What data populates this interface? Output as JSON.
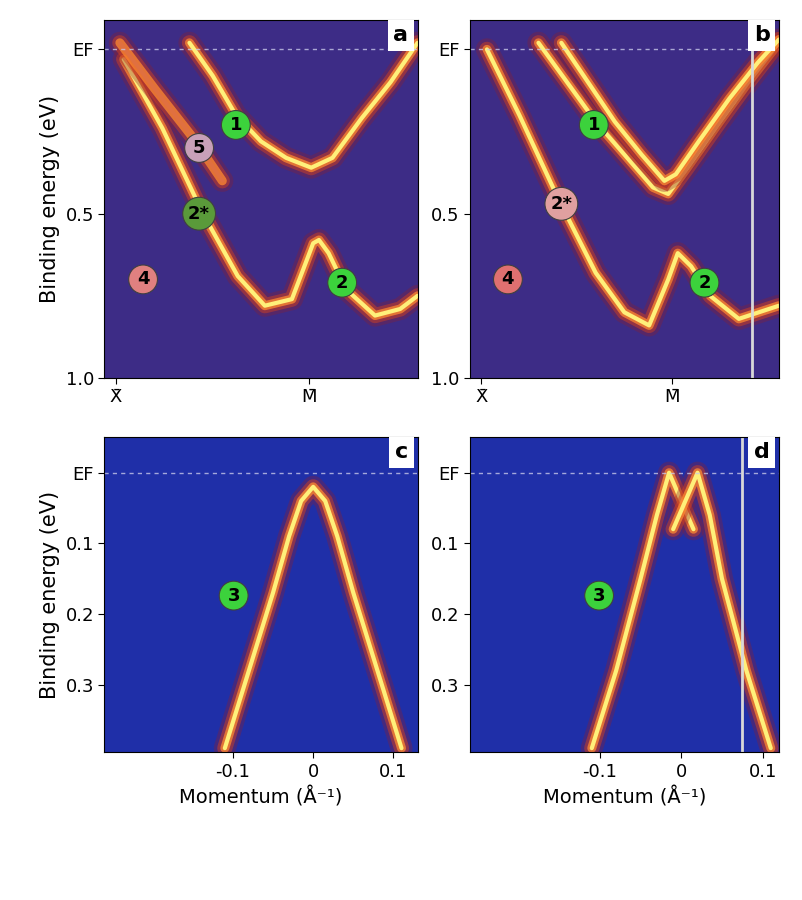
{
  "chart_data": [
    {
      "type": "line",
      "title": "a",
      "ylabel": "Binding energy (eV)",
      "xlim": [
        -0.06,
        1.56
      ],
      "ylim": [
        1.0,
        -0.09
      ],
      "xticks": [
        {
          "value": 0,
          "label": "X̄"
        },
        {
          "value": 1,
          "label": "M̄"
        }
      ],
      "yticks": [
        {
          "value": 0,
          "label": "EF"
        },
        0.5,
        1.0
      ],
      "hlines": [
        0
      ],
      "series": [
        {
          "color": "#fff07a",
          "x": [
            0.04,
            0.24,
            0.45,
            0.63,
            0.77,
            0.91,
            1.02,
            1.05,
            1.1,
            1.19,
            1.34,
            1.47,
            1.56
          ],
          "values": [
            0.03,
            0.24,
            0.5,
            0.69,
            0.78,
            0.76,
            0.59,
            0.58,
            0.62,
            0.73,
            0.81,
            0.79,
            0.75
          ]
        },
        {
          "color": "#fff07a",
          "x": [
            0.38,
            0.5,
            0.62,
            0.75,
            0.88,
            1.01,
            1.12,
            1.27,
            1.42,
            1.56
          ],
          "values": [
            -0.02,
            0.08,
            0.2,
            0.28,
            0.33,
            0.36,
            0.33,
            0.21,
            0.1,
            -0.02
          ]
        },
        {
          "color": "#e07040",
          "x": [
            0.02,
            0.2,
            0.4,
            0.55
          ],
          "values": [
            -0.02,
            0.12,
            0.27,
            0.4
          ]
        }
      ],
      "annotations": [
        {
          "text": "1",
          "x": 0.62,
          "y": 0.23,
          "color": "#3cd23c"
        },
        {
          "text": "5",
          "x": 0.43,
          "y": 0.3,
          "color": "#c8a0b8"
        },
        {
          "text": "2*",
          "x": 0.43,
          "y": 0.5,
          "color": "#5a9a3a"
        },
        {
          "text": "4",
          "x": 0.14,
          "y": 0.7,
          "color": "#e08080"
        },
        {
          "text": "2",
          "x": 1.17,
          "y": 0.71,
          "color": "#3cd23c"
        }
      ]
    },
    {
      "type": "line",
      "title": "b",
      "xlim": [
        -0.06,
        1.56
      ],
      "ylim": [
        1.0,
        -0.09
      ],
      "xticks": [
        {
          "value": 0,
          "label": "X̄"
        },
        {
          "value": 1,
          "label": "M̄"
        }
      ],
      "yticks": [
        {
          "value": 0,
          "label": "EF"
        },
        0.5,
        1.0
      ],
      "hlines": [
        0
      ],
      "vlines": [
        1.42
      ],
      "series": [
        {
          "color": "#fff07a",
          "x": [
            0.03,
            0.2,
            0.4,
            0.6,
            0.75,
            0.88,
            0.98,
            1.03,
            1.1,
            1.2,
            1.35,
            1.56
          ],
          "values": [
            0.0,
            0.2,
            0.45,
            0.68,
            0.8,
            0.84,
            0.7,
            0.62,
            0.66,
            0.75,
            0.82,
            0.78
          ]
        },
        {
          "color": "#fff07a",
          "x": [
            0.3,
            0.45,
            0.6,
            0.75,
            0.9,
            0.98,
            1.08,
            1.25,
            1.4,
            1.56
          ],
          "values": [
            -0.02,
            0.1,
            0.22,
            0.32,
            0.42,
            0.44,
            0.36,
            0.22,
            0.1,
            -0.02
          ]
        },
        {
          "color": "#fff07a",
          "x": [
            0.42,
            0.56,
            0.7,
            0.84,
            0.96,
            1.02,
            1.14,
            1.3,
            1.45,
            1.56
          ],
          "values": [
            -0.02,
            0.1,
            0.22,
            0.32,
            0.4,
            0.38,
            0.28,
            0.15,
            0.04,
            -0.03
          ]
        }
      ],
      "annotations": [
        {
          "text": "1",
          "x": 0.59,
          "y": 0.23,
          "color": "#3cd23c"
        },
        {
          "text": "2*",
          "x": 0.42,
          "y": 0.47,
          "color": "#e0a0a0"
        },
        {
          "text": "4",
          "x": 0.14,
          "y": 0.7,
          "color": "#e07070"
        },
        {
          "text": "2",
          "x": 1.17,
          "y": 0.71,
          "color": "#3cd23c"
        }
      ]
    },
    {
      "type": "line",
      "title": "c",
      "xlabel": "Momentum (Å⁻¹)",
      "ylabel": "Binding energy (eV)",
      "xlim": [
        -0.26,
        0.13
      ],
      "ylim": [
        0.396,
        -0.05
      ],
      "xticks": [
        -0.1,
        0,
        0.1
      ],
      "yticks": [
        {
          "value": 0,
          "label": "EF"
        },
        0.1,
        0.2,
        0.3
      ],
      "hlines": [
        0
      ],
      "series": [
        {
          "color": "#fff07a",
          "x": [
            -0.11,
            -0.08,
            -0.05,
            -0.03,
            -0.015,
            0,
            0.015,
            0.03,
            0.05,
            0.08,
            0.11
          ],
          "values": [
            0.39,
            0.28,
            0.17,
            0.09,
            0.04,
            0.02,
            0.04,
            0.09,
            0.17,
            0.28,
            0.39
          ]
        }
      ],
      "annotations": [
        {
          "text": "3",
          "x": -0.099,
          "y": 0.174,
          "color": "#3cd23c"
        }
      ]
    },
    {
      "type": "line",
      "title": "d",
      "xlabel": "Momentum (Å⁻¹)",
      "xlim": [
        -0.26,
        0.12
      ],
      "ylim": [
        0.396,
        -0.05
      ],
      "xticks": [
        -0.1,
        0,
        0.1
      ],
      "yticks": [
        {
          "value": 0,
          "label": "EF"
        },
        0.1,
        0.2,
        0.3
      ],
      "hlines": [
        0
      ],
      "vlines": [
        0.075
      ],
      "series": [
        {
          "color": "#fff07a",
          "x": [
            -0.11,
            -0.08,
            -0.05,
            -0.03,
            -0.015,
            0.0,
            0.015
          ],
          "values": [
            0.39,
            0.28,
            0.15,
            0.06,
            0.0,
            0.04,
            0.08
          ]
        },
        {
          "color": "#fff07a",
          "x": [
            0.11,
            0.08,
            0.05,
            0.035,
            0.02,
            0.005,
            -0.01
          ],
          "values": [
            0.39,
            0.28,
            0.15,
            0.06,
            0.0,
            0.04,
            0.08
          ]
        }
      ],
      "annotations": [
        {
          "text": "3",
          "x": -0.101,
          "y": 0.174,
          "color": "#3cd23c"
        }
      ]
    }
  ]
}
